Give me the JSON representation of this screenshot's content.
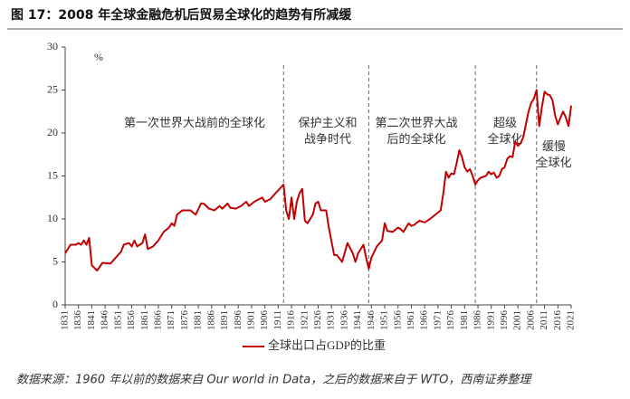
{
  "chart_data": {
    "type": "line",
    "title": "图 17：2008 年全球金融危机后贸易全球化的趋势有所减缓",
    "y_unit": "%",
    "source": "数据来源：1960 年以前的数据来自 Our world in Data，之后的数据来自于 WTO，西南证券整理",
    "x": [
      1831,
      1833,
      1835,
      1836,
      1837,
      1838,
      1839,
      1840,
      1841,
      1843,
      1845,
      1848,
      1850,
      1852,
      1853,
      1855,
      1856,
      1857,
      1858,
      1860,
      1861,
      1862,
      1864,
      1866,
      1868,
      1870,
      1871,
      1872,
      1873,
      1875,
      1878,
      1880,
      1882,
      1883,
      1885,
      1887,
      1889,
      1890,
      1892,
      1893,
      1895,
      1897,
      1899,
      1900,
      1902,
      1905,
      1906,
      1908,
      1910,
      1913,
      1914,
      1915,
      1916,
      1917,
      1918,
      1919,
      1920,
      1921,
      1922,
      1924,
      1925,
      1926,
      1927,
      1929,
      1930,
      1932,
      1933,
      1935,
      1937,
      1939,
      1940,
      1941,
      1943,
      1944,
      1945,
      1946,
      1948,
      1950,
      1951,
      1952,
      1954,
      1956,
      1957,
      1958,
      1960,
      1961,
      1962,
      1964,
      1966,
      1968,
      1970,
      1972,
      1973,
      1974,
      1975,
      1976,
      1977,
      1978,
      1979,
      1980,
      1981,
      1982,
      1983,
      1984,
      1985,
      1986,
      1987,
      1989,
      1990,
      1991,
      1992,
      1993,
      1994,
      1995,
      1996,
      1997,
      1998,
      1999,
      2000,
      2001,
      2002,
      2003,
      2004,
      2005,
      2006,
      2007,
      2008,
      2009,
      2010,
      2011,
      2012,
      2013,
      2014,
      2015,
      2016,
      2017,
      2018,
      2019,
      2020,
      2021
    ],
    "series": [
      {
        "name": "全球出口占GDP的比重",
        "color": "#c00000",
        "values": [
          6.0,
          7.0,
          7.0,
          7.2,
          7.0,
          7.5,
          7.0,
          7.8,
          4.6,
          4.0,
          4.9,
          4.8,
          5.5,
          6.2,
          7.0,
          7.2,
          6.8,
          7.5,
          6.8,
          7.2,
          8.2,
          6.5,
          6.8,
          7.5,
          8.5,
          9.0,
          9.5,
          9.2,
          10.5,
          11.0,
          11.0,
          10.5,
          11.8,
          11.8,
          11.2,
          11.0,
          11.5,
          11.2,
          11.8,
          11.3,
          11.2,
          11.5,
          12.0,
          11.5,
          12.0,
          12.5,
          12.0,
          12.3,
          13.0,
          14.0,
          11.0,
          10.0,
          12.5,
          10.0,
          12.0,
          13.0,
          13.5,
          9.8,
          9.5,
          10.5,
          11.8,
          12.0,
          11.0,
          11.0,
          9.0,
          5.8,
          5.8,
          5.0,
          7.2,
          6.0,
          5.0,
          6.0,
          7.0,
          5.5,
          4.2,
          5.5,
          6.8,
          7.5,
          9.5,
          8.6,
          8.5,
          9.0,
          8.8,
          8.5,
          9.5,
          9.2,
          9.3,
          9.8,
          9.6,
          10.0,
          10.5,
          11.0,
          13.0,
          15.5,
          14.8,
          15.3,
          15.2,
          16.5,
          18.0,
          17.2,
          16.0,
          15.5,
          15.8,
          15.0,
          14.0,
          14.5,
          14.8,
          15.0,
          15.5,
          15.2,
          15.4,
          14.8,
          15.0,
          15.8,
          16.0,
          17.0,
          17.3,
          17.2,
          19.0,
          18.5,
          18.8,
          19.5,
          21.0,
          22.5,
          23.5,
          24.0,
          25.0,
          20.8,
          23.0,
          24.8,
          24.5,
          24.4,
          23.8,
          22.0,
          21.0,
          21.8,
          22.5,
          21.8,
          20.8,
          23.2
        ]
      }
    ],
    "xlim": [
      1831,
      2021
    ],
    "xticks": [
      1831,
      1836,
      1841,
      1846,
      1851,
      1856,
      1861,
      1866,
      1871,
      1876,
      1881,
      1886,
      1891,
      1896,
      1901,
      1906,
      1911,
      1916,
      1921,
      1926,
      1931,
      1936,
      1941,
      1946,
      1951,
      1956,
      1961,
      1966,
      1971,
      1976,
      1981,
      1986,
      1991,
      1996,
      2001,
      2006,
      2011,
      2016,
      2021
    ],
    "ylim": [
      0,
      30
    ],
    "yticks": [
      0,
      5,
      10,
      15,
      20,
      25,
      30
    ],
    "dividers": [
      1913,
      1945,
      1985,
      2008
    ],
    "annotations": [
      [
        "第一次世界大战前的全球化"
      ],
      [
        "保护主义和",
        "战争时代"
      ],
      [
        "第二次世界大战",
        "后的全球化"
      ],
      [
        "超级",
        "全球化"
      ],
      [
        "缓慢",
        "全球化"
      ]
    ],
    "legend": "bottom"
  }
}
